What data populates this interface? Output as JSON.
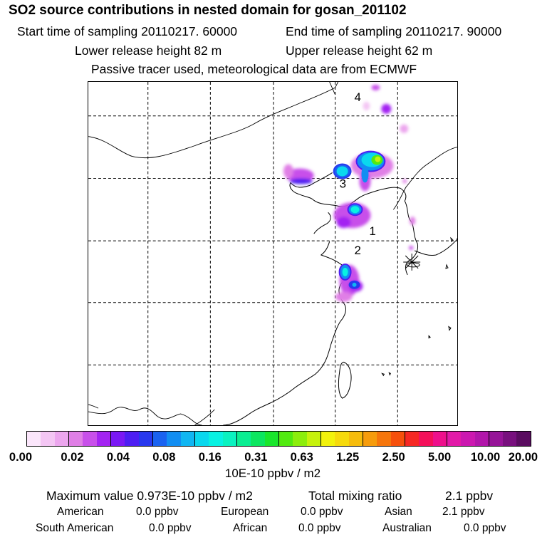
{
  "title": "SO2 source contributions in nested domain for gosan_201102",
  "header": {
    "start_sampling": "Start time of sampling 20110217. 60000",
    "end_sampling": "End time of sampling 20110217. 90000",
    "lower_release": "Lower release height   82 m",
    "upper_release": "Upper release height   62 m",
    "tracer_note": "Passive tracer used, meteorological data are from ECMWF"
  },
  "map": {
    "region_labels": [
      "4",
      "3",
      "1",
      "2"
    ],
    "receptor_marker": "gosan-asterisk-icon"
  },
  "colorbar": {
    "colors": [
      "#fbe6fb",
      "#f4c6f4",
      "#eca6ee",
      "#e07fe6",
      "#c850ea",
      "#a324f2",
      "#7a18f4",
      "#4d1ef2",
      "#2838ee",
      "#1a62f0",
      "#128ef2",
      "#10b6f2",
      "#0ad8ee",
      "#08f2e2",
      "#0af2c0",
      "#0aee92",
      "#0ce660",
      "#1ae62c",
      "#52ea10",
      "#8cee0c",
      "#c6f20c",
      "#f2f20c",
      "#f6da0c",
      "#f6bc0c",
      "#f69c0c",
      "#f6760c",
      "#f6500c",
      "#f62824",
      "#f4105a",
      "#ee108c",
      "#e21aa8",
      "#cc18b0",
      "#b216aa",
      "#961498",
      "#78107e",
      "#5a0c60"
    ],
    "ticks": [
      "0.00",
      "0.02",
      "0.04",
      "0.08",
      "0.16",
      "0.31",
      "0.63",
      "1.25",
      "2.50",
      "5.00",
      "10.00",
      "20.00"
    ],
    "units": "10E-10 ppbv / m2"
  },
  "stats": {
    "max_value": "Maximum value  0.973E-10 ppbv / m2",
    "total_mixing": "Total mixing ratio",
    "total_mixing_value": "2.1 ppbv"
  },
  "regions": [
    {
      "name": "American",
      "value": "0.0 ppbv"
    },
    {
      "name": "European",
      "value": "0.0 ppbv"
    },
    {
      "name": "Asian",
      "value": "2.1 ppbv"
    },
    {
      "name": "South American",
      "value": "0.0 ppbv"
    },
    {
      "name": "African",
      "value": "0.0 ppbv"
    },
    {
      "name": "Australian",
      "value": "0.0 ppbv"
    }
  ]
}
